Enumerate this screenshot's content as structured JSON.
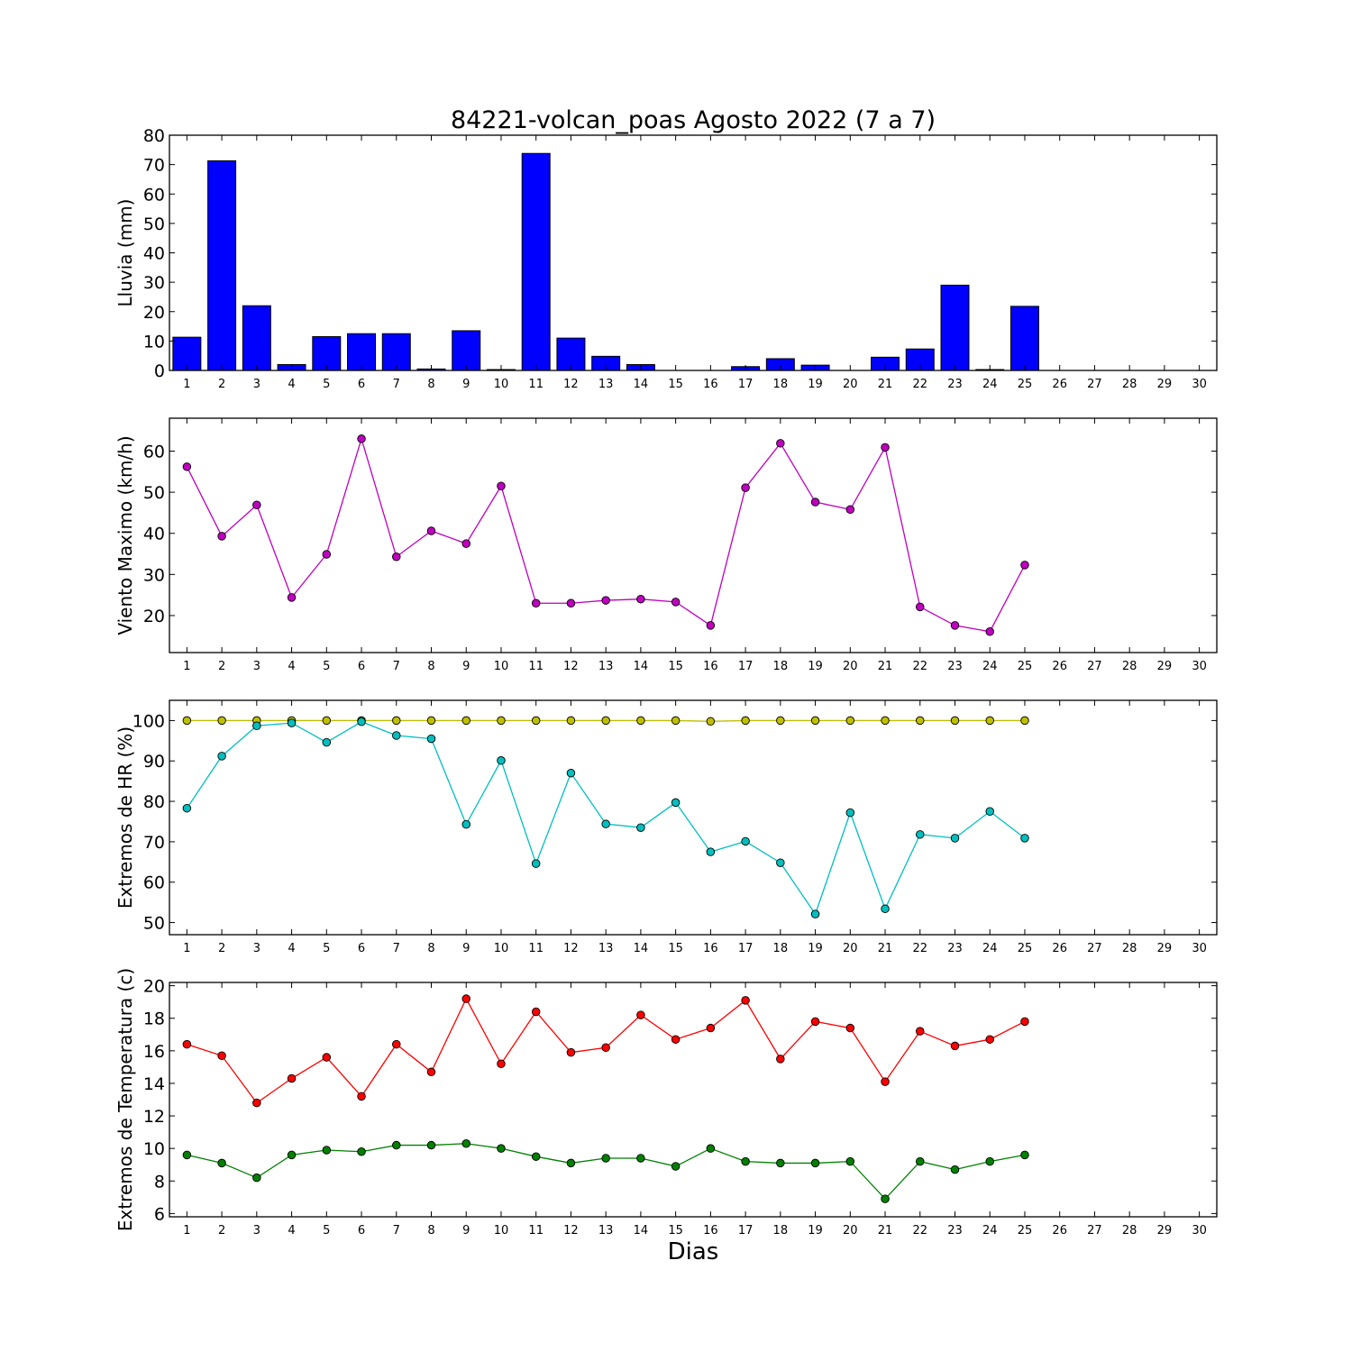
{
  "figure": {
    "title": "84221-volcan_poas Agosto 2022  (7 a 7)",
    "xlabel": "Dias"
  },
  "chart_data": [
    {
      "type": "bar",
      "ylabel": "Lluvia (mm)",
      "ylim": [
        0,
        80
      ],
      "yticks": [
        0,
        10,
        20,
        30,
        40,
        50,
        60,
        70,
        80
      ],
      "xlim": [
        0.5,
        30.5
      ],
      "xticks": [
        1,
        2,
        3,
        4,
        5,
        6,
        7,
        8,
        9,
        10,
        11,
        12,
        13,
        14,
        15,
        16,
        17,
        18,
        19,
        20,
        21,
        22,
        23,
        24,
        25,
        26,
        27,
        28,
        29,
        30
      ],
      "color": "#0000ff",
      "x": [
        1,
        2,
        3,
        4,
        5,
        6,
        7,
        8,
        9,
        10,
        11,
        12,
        13,
        14,
        15,
        16,
        17,
        18,
        19,
        20,
        21,
        22,
        23,
        24,
        25
      ],
      "values": [
        11.3,
        71.3,
        22.0,
        2.0,
        11.5,
        12.5,
        12.5,
        0.5,
        13.5,
        0.3,
        73.8,
        11.0,
        4.8,
        2.0,
        0.0,
        0.0,
        1.3,
        4.0,
        1.8,
        0.0,
        4.5,
        7.3,
        29.0,
        0.3,
        21.8
      ]
    },
    {
      "type": "line",
      "ylabel": "Viento Maximo (km/h)",
      "ylim": [
        11,
        68
      ],
      "yticks": [
        20,
        30,
        40,
        50,
        60
      ],
      "xlim": [
        0.5,
        30.5
      ],
      "xticks": [
        1,
        2,
        3,
        4,
        5,
        6,
        7,
        8,
        9,
        10,
        11,
        12,
        13,
        14,
        15,
        16,
        17,
        18,
        19,
        20,
        21,
        22,
        23,
        24,
        25,
        26,
        27,
        28,
        29,
        30
      ],
      "x": [
        1,
        2,
        3,
        4,
        5,
        6,
        7,
        8,
        9,
        10,
        11,
        12,
        13,
        14,
        15,
        16,
        17,
        18,
        19,
        20,
        21,
        22,
        23,
        24,
        25
      ],
      "series": [
        {
          "color": "#bf00bf",
          "values": [
            56.2,
            39.3,
            46.9,
            24.4,
            34.9,
            63.0,
            34.3,
            40.6,
            37.5,
            51.5,
            23.0,
            23.0,
            23.7,
            24.0,
            23.3,
            17.6,
            51.1,
            61.9,
            47.6,
            45.8,
            60.9,
            22.1,
            17.6,
            16.1,
            32.3
          ]
        }
      ]
    },
    {
      "type": "line",
      "ylabel": "Extremos de HR (%)",
      "ylim": [
        47,
        105
      ],
      "yticks": [
        50,
        60,
        70,
        80,
        90,
        100
      ],
      "xlim": [
        0.5,
        30.5
      ],
      "xticks": [
        1,
        2,
        3,
        4,
        5,
        6,
        7,
        8,
        9,
        10,
        11,
        12,
        13,
        14,
        15,
        16,
        17,
        18,
        19,
        20,
        21,
        22,
        23,
        24,
        25,
        26,
        27,
        28,
        29,
        30
      ],
      "x": [
        1,
        2,
        3,
        4,
        5,
        6,
        7,
        8,
        9,
        10,
        11,
        12,
        13,
        14,
        15,
        16,
        17,
        18,
        19,
        20,
        21,
        22,
        23,
        24,
        25
      ],
      "series": [
        {
          "color": "#bfbf00",
          "values": [
            100,
            100,
            100,
            100,
            100,
            100,
            100,
            100,
            100,
            100,
            100,
            100,
            100,
            100,
            100,
            99.8,
            100,
            100,
            100,
            100,
            100,
            100,
            100,
            100,
            100
          ]
        },
        {
          "color": "#00bfbf",
          "values": [
            78.3,
            91.2,
            98.7,
            99.4,
            94.6,
            99.7,
            96.3,
            95.5,
            74.3,
            90.1,
            64.6,
            87.0,
            74.4,
            73.5,
            79.7,
            67.5,
            70.1,
            64.8,
            52.1,
            77.2,
            53.4,
            71.8,
            70.9,
            77.5,
            70.9
          ]
        }
      ]
    },
    {
      "type": "line",
      "ylabel": "Extremos de Temperatura (c)",
      "ylim": [
        5.8,
        20.2
      ],
      "yticks": [
        6,
        8,
        10,
        12,
        14,
        16,
        18,
        20
      ],
      "xlim": [
        0.5,
        30.5
      ],
      "xticks": [
        1,
        2,
        3,
        4,
        5,
        6,
        7,
        8,
        9,
        10,
        11,
        12,
        13,
        14,
        15,
        16,
        17,
        18,
        19,
        20,
        21,
        22,
        23,
        24,
        25,
        26,
        27,
        28,
        29,
        30
      ],
      "x": [
        1,
        2,
        3,
        4,
        5,
        6,
        7,
        8,
        9,
        10,
        11,
        12,
        13,
        14,
        15,
        16,
        17,
        18,
        19,
        20,
        21,
        22,
        23,
        24,
        25
      ],
      "series": [
        {
          "color": "#ff0000",
          "values": [
            16.4,
            15.7,
            12.8,
            14.3,
            15.6,
            13.2,
            16.4,
            14.7,
            19.2,
            15.2,
            18.4,
            15.9,
            16.2,
            18.2,
            16.7,
            17.4,
            19.1,
            15.5,
            17.8,
            17.4,
            14.1,
            17.2,
            16.3,
            16.7,
            17.8
          ]
        },
        {
          "color": "#008000",
          "values": [
            9.6,
            9.1,
            8.2,
            9.6,
            9.9,
            9.8,
            10.2,
            10.2,
            10.3,
            10.0,
            9.5,
            9.1,
            9.4,
            9.4,
            8.9,
            10.0,
            9.2,
            9.1,
            9.1,
            9.2,
            6.9,
            9.2,
            8.7,
            9.2,
            9.6
          ]
        }
      ]
    }
  ]
}
